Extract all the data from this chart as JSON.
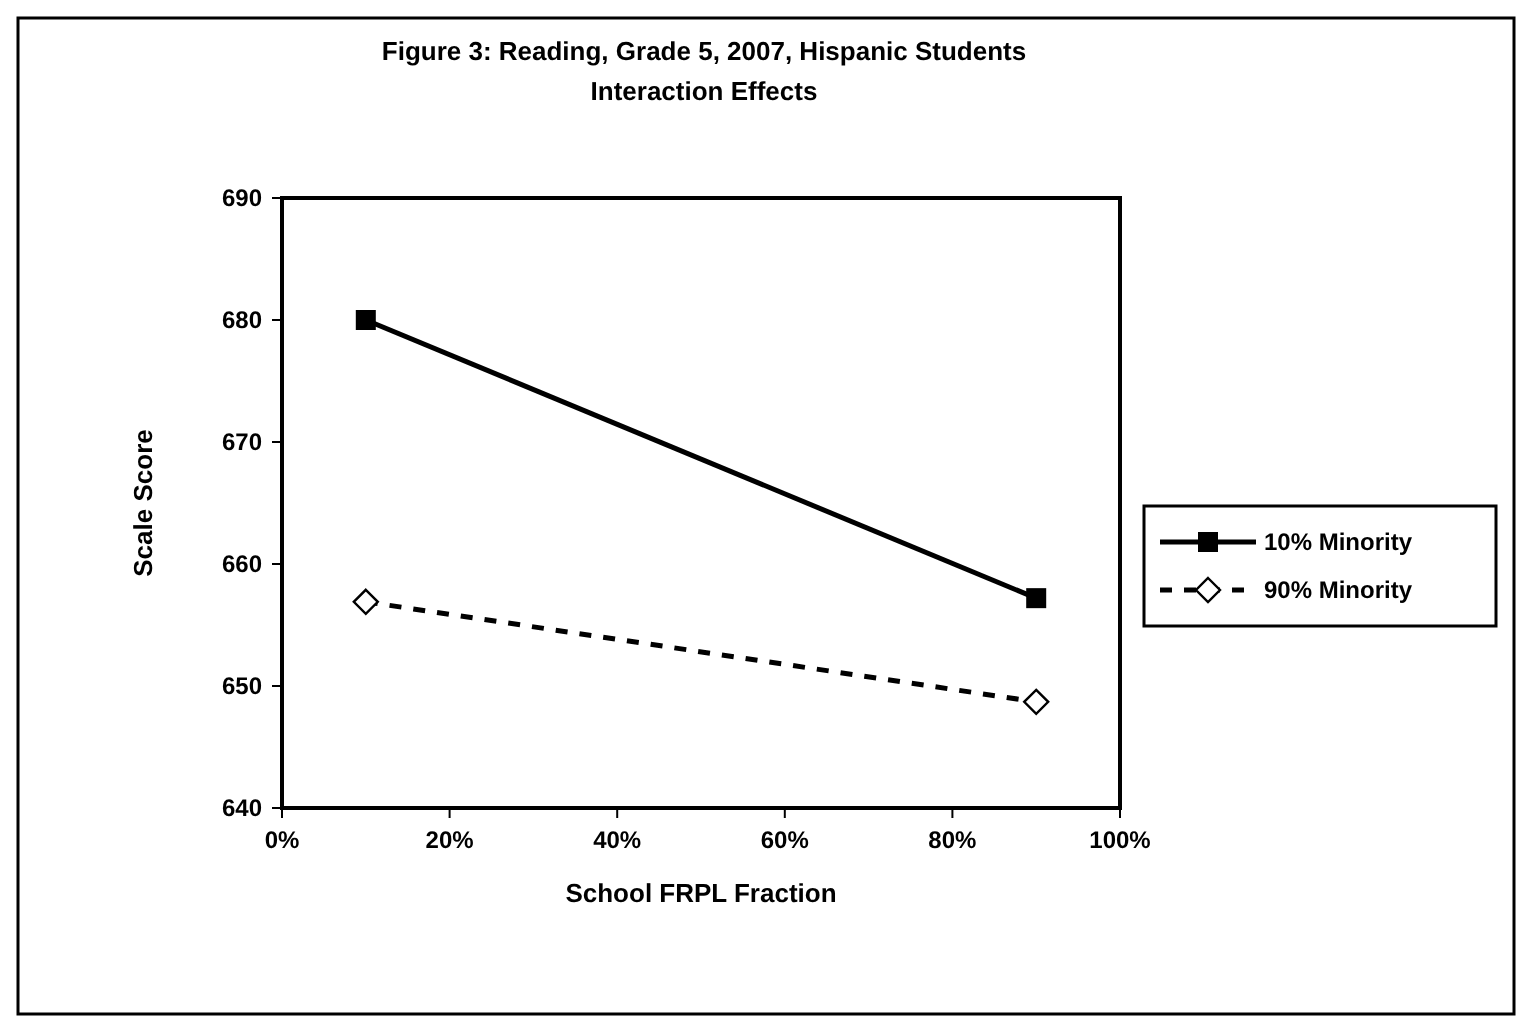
{
  "chart_data": {
    "type": "line",
    "title": "Figure 3: Reading, Grade 5, 2007, Hispanic Students",
    "subtitle": "Interaction Effects",
    "xlabel": "School FRPL Fraction",
    "ylabel": "Scale Score",
    "x": [
      0.1,
      0.9
    ],
    "series": [
      {
        "name": "10% Minority",
        "color": "#000000",
        "values": [
          680.0,
          657.2
        ],
        "marker": "square",
        "line_style": "solid"
      },
      {
        "name": "90% Minority",
        "color": "#000000",
        "values": [
          656.9,
          648.7
        ],
        "marker": "diamond",
        "line_style": "dashed"
      }
    ],
    "xlim": [
      0,
      1
    ],
    "xticks": [
      {
        "value": 0,
        "label": "0%"
      },
      {
        "value": 0.2,
        "label": "20%"
      },
      {
        "value": 0.4,
        "label": "40%"
      },
      {
        "value": 0.6,
        "label": "60%"
      },
      {
        "value": 0.8,
        "label": "80%"
      },
      {
        "value": 1,
        "label": "100%"
      }
    ],
    "ylim": [
      640,
      690
    ],
    "yticks": [
      640,
      650,
      660,
      670,
      680,
      690
    ],
    "grid": false,
    "legend": "right"
  }
}
